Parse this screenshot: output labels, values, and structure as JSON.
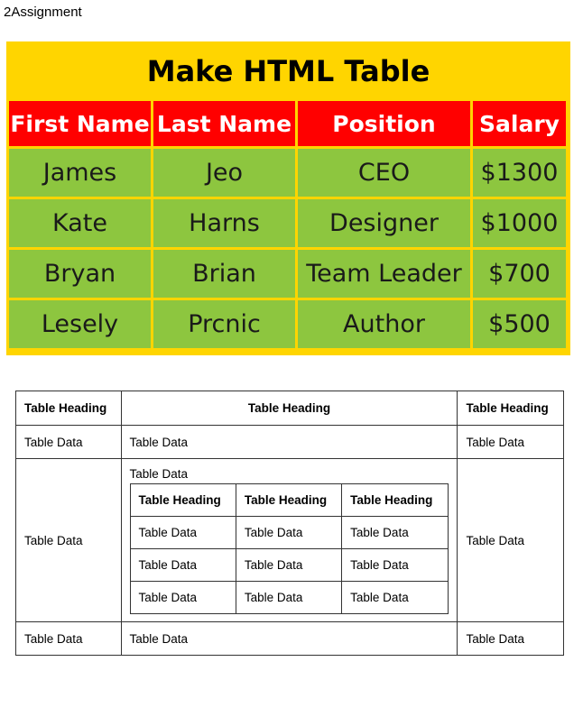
{
  "page": {
    "title": "2Assignment"
  },
  "image_table": {
    "title": "Make HTML Table",
    "headers": [
      "First Name",
      "Last Name",
      "Position",
      "Salary"
    ],
    "rows": [
      [
        "James",
        "Jeo",
        "CEO",
        "$1300"
      ],
      [
        "Kate",
        "Harns",
        "Designer",
        "$1000"
      ],
      [
        "Bryan",
        "Brian",
        "Team Leader",
        "$700"
      ],
      [
        "Lesely",
        "Prcnic",
        "Author",
        "$500"
      ]
    ],
    "colors": {
      "background": "#ffd500",
      "header": "#ff0000",
      "cell": "#8dc63f"
    }
  },
  "nested_table": {
    "headers": [
      "Table Heading",
      "Table Heading",
      "Table Heading"
    ],
    "row1": [
      "Table Data",
      "Table Data",
      "Table Data"
    ],
    "row2": {
      "left": "Table Data",
      "middle_label": "Table Data",
      "right": "Table Data"
    },
    "inner": {
      "headers": [
        "Table Heading",
        "Table Heading",
        "Table Heading"
      ],
      "rows": [
        [
          "Table Data",
          "Table Data",
          "Table Data"
        ],
        [
          "Table Data",
          "Table Data",
          "Table Data"
        ],
        [
          "Table Data",
          "Table Data",
          "Table Data"
        ]
      ]
    },
    "row3": [
      "Table Data",
      "Table Data",
      "Table Data"
    ]
  }
}
